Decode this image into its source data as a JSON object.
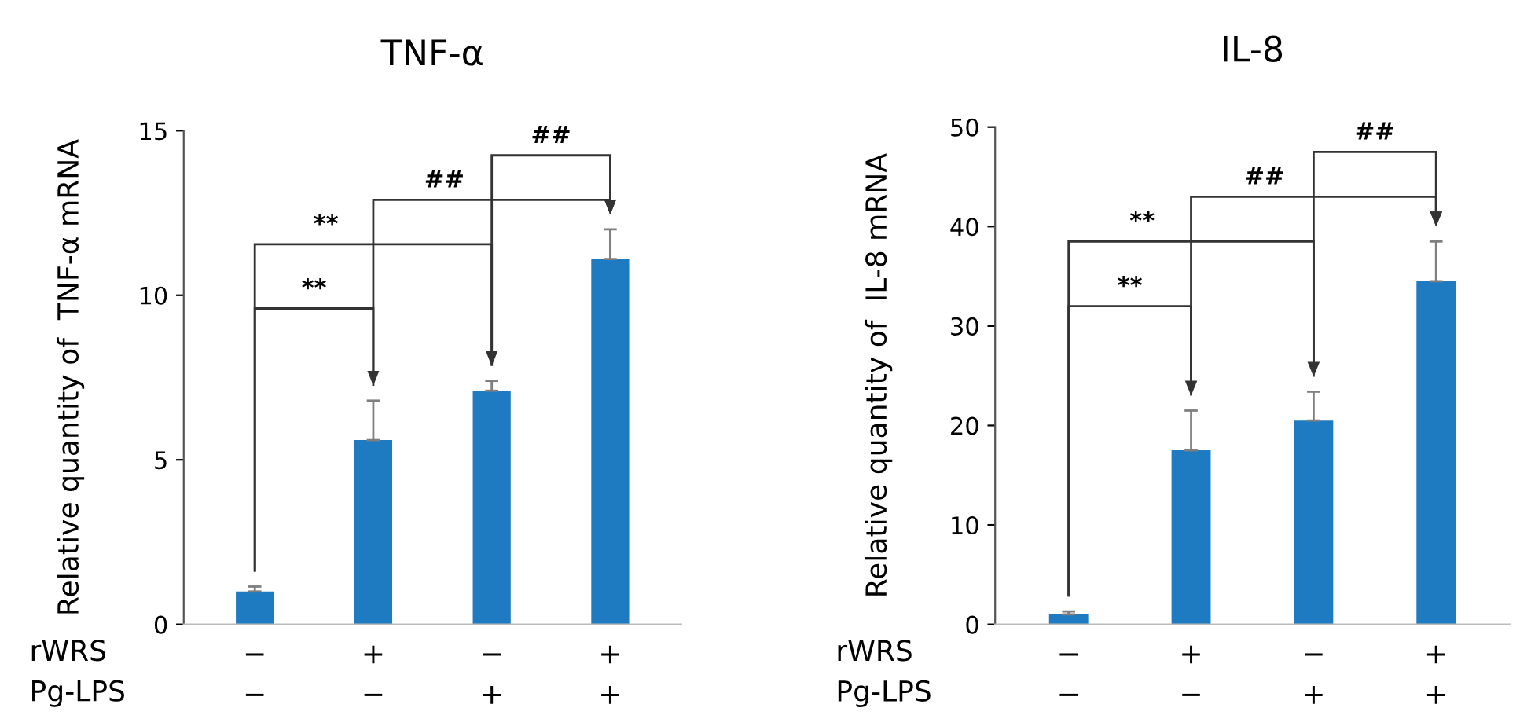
{
  "chart_data": [
    {
      "type": "bar",
      "title": "TNF-α",
      "ylabel": "Relative quantity of  TNF-α mRNA",
      "xlabel": "rWRS\nPg-LPS",
      "categories": [
        "−\n−",
        "+\n−",
        "−\n+",
        "+\n+"
      ],
      "values": [
        1.0,
        5.6,
        7.1,
        11.1
      ],
      "color": "#1f7bc1",
      "errors": [
        [
          1.0,
          1.15
        ],
        [
          5.6,
          6.8
        ],
        [
          7.1,
          7.4
        ],
        [
          11.1,
          12.0
        ]
      ],
      "ylim": [
        0,
        15
      ],
      "yticks": [
        0,
        5,
        10,
        15
      ],
      "grid": false,
      "legend": false,
      "annotations": [
        "**",
        "**",
        "##",
        "##"
      ]
    },
    {
      "type": "bar",
      "title": "IL-8",
      "ylabel": "Relative quantity of  IL-8 mRNA",
      "xlabel": "rWRS\nPg-LPS",
      "categories": [
        "−\n−",
        "+\n−",
        "−\n+",
        "+\n+"
      ],
      "values": [
        1.0,
        17.5,
        20.5,
        34.5
      ],
      "color": "#1f7bc1",
      "errors": [
        [
          1.0,
          1.3
        ],
        [
          17.5,
          21.5
        ],
        [
          20.5,
          23.4
        ],
        [
          34.5,
          38.5
        ]
      ],
      "ylim": [
        0,
        50
      ],
      "yticks": [
        0,
        10,
        20,
        30,
        40,
        50
      ],
      "grid": false,
      "legend": false,
      "annotations": [
        "**",
        "**",
        "##",
        "##"
      ]
    }
  ]
}
